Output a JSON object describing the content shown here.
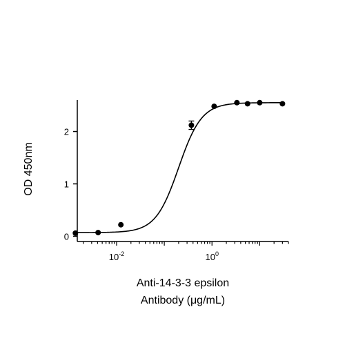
{
  "chart_data": {
    "type": "scatter",
    "title": "",
    "xlabel_lines": [
      "Anti-14-3-3 epsilon",
      "Antibody (μg/mL)"
    ],
    "ylabel": "OD 450nm",
    "x_scale": "log10",
    "x_ticks": [
      {
        "value": 0.01,
        "base": "10",
        "exponent": "-2"
      },
      {
        "value": 1,
        "base": "10",
        "exponent": "0"
      }
    ],
    "y_ticks": [
      {
        "value": 0,
        "label": "0"
      },
      {
        "value": 1,
        "label": "1"
      },
      {
        "value": 2,
        "label": "2"
      }
    ],
    "xlim": [
      0.0015,
      40
    ],
    "ylim": [
      -0.1,
      2.6
    ],
    "grid": false,
    "legend": "none",
    "series": [
      {
        "points": [
          {
            "x": 0.00137,
            "y": 0.06,
            "err": 0
          },
          {
            "x": 0.0041,
            "y": 0.07,
            "err": 0
          },
          {
            "x": 0.0123,
            "y": 0.22,
            "err": 0
          },
          {
            "x": 0.37,
            "y": 2.12,
            "err": 0.08
          },
          {
            "x": 1.11,
            "y": 2.48,
            "err": 0
          },
          {
            "x": 3.33,
            "y": 2.55,
            "err": 0
          },
          {
            "x": 5.56,
            "y": 2.53,
            "err": 0
          },
          {
            "x": 10,
            "y": 2.55,
            "err": 0
          },
          {
            "x": 30,
            "y": 2.53,
            "err": 0
          }
        ],
        "fit": {
          "model": "4PL",
          "bottom": 0.07,
          "top": 2.55,
          "ec50": 0.2,
          "hill": 1.8
        },
        "color": "#000000"
      }
    ]
  }
}
